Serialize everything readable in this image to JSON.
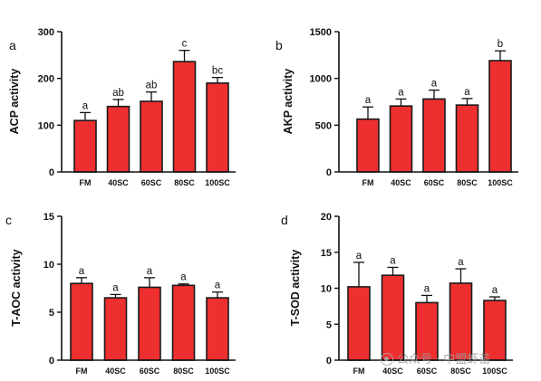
{
  "watermark": "公众号 · 中盟虾苗",
  "colors": {
    "bar": "#ee2f2f",
    "outline": "#1a1a1a"
  },
  "chart_data": [
    {
      "type": "bar",
      "panel": "a",
      "ylabel": "ACP activity",
      "categories": [
        "FM",
        "40SC",
        "60SC",
        "80SC",
        "100SC"
      ],
      "values": [
        110,
        140,
        151,
        236,
        190
      ],
      "errors": [
        17,
        15,
        20,
        24,
        12
      ],
      "significance": [
        "a",
        "ab",
        "ab",
        "c",
        "bc"
      ],
      "ylim": [
        0,
        300
      ],
      "yticks": [
        0,
        100,
        200,
        300
      ]
    },
    {
      "type": "bar",
      "panel": "b",
      "ylabel": "AKP activity",
      "categories": [
        "FM",
        "40SC",
        "60SC",
        "80SC",
        "100SC"
      ],
      "values": [
        565,
        705,
        780,
        715,
        1190
      ],
      "errors": [
        130,
        75,
        95,
        70,
        105
      ],
      "significance": [
        "a",
        "a",
        "a",
        "a",
        "b"
      ],
      "ylim": [
        0,
        1500
      ],
      "yticks": [
        0,
        500,
        1000,
        1500
      ]
    },
    {
      "type": "bar",
      "panel": "c",
      "ylabel": "T-AOC activity",
      "categories": [
        "FM",
        "40SC",
        "60SC",
        "80SC",
        "100SC"
      ],
      "values": [
        8.0,
        6.5,
        7.6,
        7.8,
        6.5
      ],
      "errors": [
        0.6,
        0.35,
        1.0,
        0.15,
        0.6
      ],
      "significance": [
        "a",
        "a",
        "a",
        "a",
        "a"
      ],
      "ylim": [
        0,
        15
      ],
      "yticks": [
        0,
        5,
        10,
        15
      ]
    },
    {
      "type": "bar",
      "panel": "d",
      "ylabel": "T-SOD activity",
      "categories": [
        "FM",
        "40SC",
        "60SC",
        "80SC",
        "100SC"
      ],
      "values": [
        10.2,
        11.8,
        8.0,
        10.7,
        8.3
      ],
      "errors": [
        3.4,
        1.1,
        1.0,
        2.0,
        0.5
      ],
      "significance": [
        "a",
        "a",
        "a",
        "a",
        "a"
      ],
      "ylim": [
        0,
        20
      ],
      "yticks": [
        0,
        5,
        10,
        15,
        20
      ]
    }
  ]
}
